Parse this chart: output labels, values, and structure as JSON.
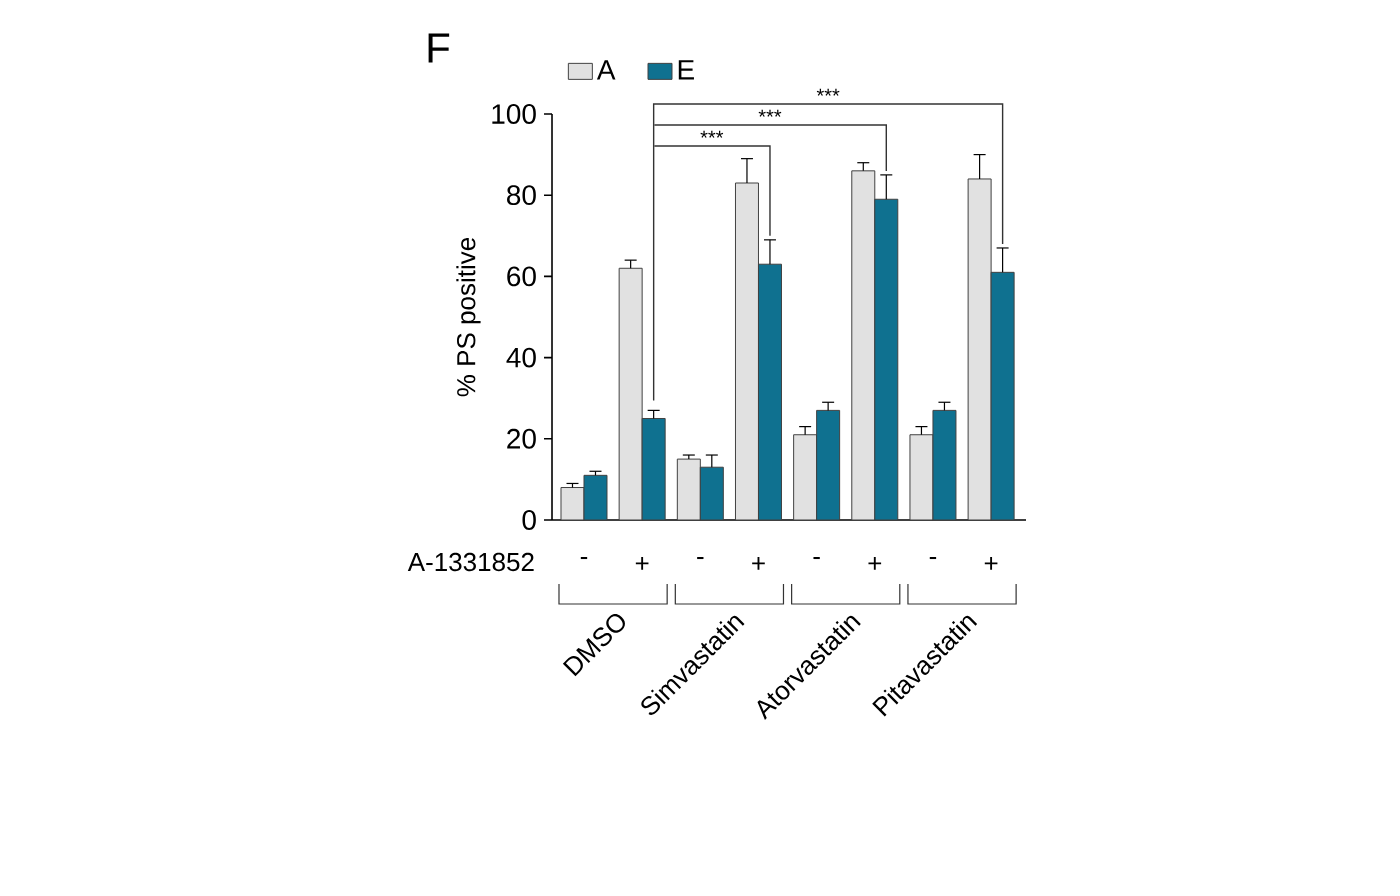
{
  "chart_data": {
    "type": "bar",
    "title": "F",
    "ylabel": "%  PS positive",
    "xlabel": "A-1331852",
    "categories": [
      "-",
      "+",
      "-",
      "+",
      "-",
      "+",
      "-",
      "+"
    ],
    "series": [
      {
        "name": "A",
        "color": "#e1e1e1",
        "values": [
          8,
          62,
          15,
          83,
          21,
          86,
          21,
          84
        ],
        "errors": [
          [
            8,
            9
          ],
          [
            62,
            64
          ],
          [
            15,
            16
          ],
          [
            83,
            89
          ],
          [
            21,
            23
          ],
          [
            86,
            88
          ],
          [
            21,
            23
          ],
          [
            84,
            90
          ]
        ]
      },
      {
        "name": "E",
        "color": "#0f7190",
        "values": [
          11,
          25,
          13,
          63,
          27,
          79,
          27,
          61
        ],
        "errors": [
          [
            11,
            12
          ],
          [
            25,
            27
          ],
          [
            13,
            16
          ],
          [
            63,
            69
          ],
          [
            27,
            29
          ],
          [
            79,
            85
          ],
          [
            27,
            29
          ],
          [
            61,
            67
          ]
        ]
      }
    ],
    "ylim": [
      0,
      100
    ],
    "yticks": [
      0,
      20,
      40,
      60,
      80,
      100
    ],
    "legend": "top left",
    "annotations": [
      "***",
      "***",
      "***",
      "DMSO",
      "Simvastatin",
      "Atorvastatin",
      "Pitavastatin"
    ]
  }
}
